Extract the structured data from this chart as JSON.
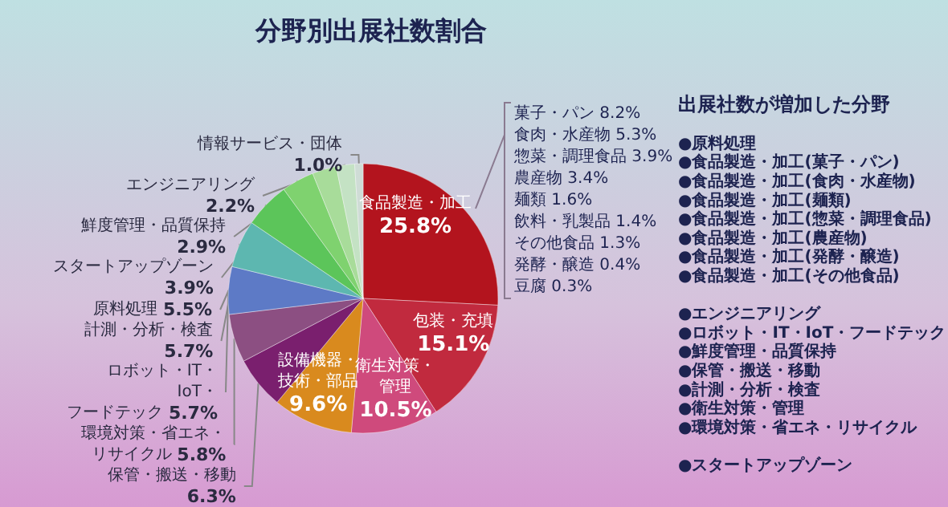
{
  "chart_data": {
    "type": "pie",
    "title": "分野別出展社数割合",
    "categories": [
      "食品製造・加工",
      "包装・充填",
      "衛生対策・管理",
      "設備機器・技術・部品",
      "保管・搬送・移動",
      "環境対策・省エネ・リサイクル",
      "ロボット・IT・IoT・フードテック",
      "計測・分析・検査",
      "原料処理",
      "スタートアップゾーン",
      "鮮度管理・品質保持",
      "エンジニアリング",
      "情報サービス・団体"
    ],
    "values": [
      25.8,
      15.1,
      10.5,
      9.6,
      6.3,
      5.8,
      5.7,
      5.7,
      5.5,
      3.9,
      2.9,
      2.2,
      1.0
    ],
    "value_labels": [
      "25.8%",
      "15.1%",
      "10.5%",
      "9.6%",
      "6.3%",
      "5.8%",
      "5.7%",
      "5.7%",
      "5.5%",
      "3.9%",
      "2.9%",
      "2.2%",
      "1.0%"
    ],
    "colors": [
      "#b3141e",
      "#c12a3e",
      "#cf4a7c",
      "#d98a1e",
      "#7a1f6e",
      "#8c4f82",
      "#5d7ac6",
      "#5db7b0",
      "#5cc55a",
      "#7fd26f",
      "#a8dc9a",
      "#c4e2c4",
      "#cfdcd6"
    ],
    "annotations": [
      "菓子・パン 8.2%\n食肉・水産物 5.3%\n惣菜・調理食品 3.9%\n農産物 3.4%\n麺類 1.6%\n飲料・乳製品 1.4%\nその他食品 1.3%\n発酵・醸造 0.4%\n豆腐 0.3%",
      "出展社数が増加した分野",
      "●原料処理\n●食品製造・加工(菓子・パン)\n●食品製造・加工(食肉・水産物)\n●食品製造・加工(麺類)\n●食品製造・加工(惣菜・調理食品)\n●食品製造・加工(農産物)\n●食品製造・加工(発酵・醸造)\n●食品製造・加工(その他食品)\n\n●エンジニアリング\n●ロボット・IT・IoT・フードテック\n●鮮度管理・品質保持\n●保管・搬送・移動\n●計測・分析・検査\n●衛生対策・管理\n●環境対策・省エネ・リサイクル\n\n●スタートアップゾーン"
    ],
    "legend": false
  }
}
